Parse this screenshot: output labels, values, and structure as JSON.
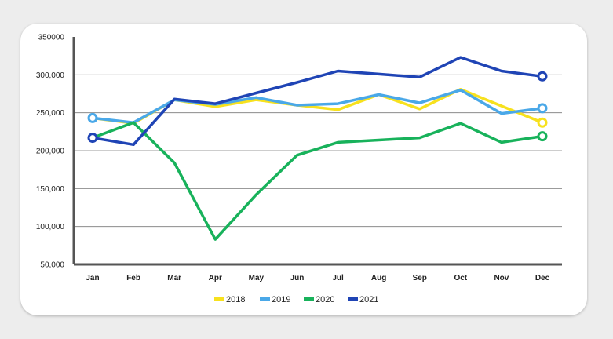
{
  "chart_data": {
    "type": "line",
    "title": "",
    "xlabel": "",
    "ylabel": "",
    "categories": [
      "Jan",
      "Feb",
      "Mar",
      "Apr",
      "May",
      "Jun",
      "Jul",
      "Aug",
      "Sep",
      "Oct",
      "Nov",
      "Dec"
    ],
    "y_ticks": [
      {
        "value": 50000,
        "label": "50,000"
      },
      {
        "value": 100000,
        "label": "100,000"
      },
      {
        "value": 150000,
        "label": "150,000"
      },
      {
        "value": 200000,
        "label": "200,000"
      },
      {
        "value": 250000,
        "label": "250,000"
      },
      {
        "value": 300000,
        "label": "300,000"
      },
      {
        "value": 350000,
        "label": "350000"
      }
    ],
    "ylim": [
      50000,
      350000
    ],
    "grid": true,
    "legend_position": "bottom",
    "series": [
      {
        "name": "2018",
        "color": "#f7e11e",
        "values": [
          243000,
          236000,
          267000,
          258000,
          267000,
          260000,
          254000,
          274000,
          255000,
          281000,
          259000,
          237000
        ]
      },
      {
        "name": "2019",
        "color": "#4aa8e8",
        "values": [
          243000,
          237000,
          267000,
          261000,
          270000,
          260000,
          262000,
          274000,
          263000,
          280000,
          249000,
          256000
        ]
      },
      {
        "name": "2020",
        "color": "#18b25b",
        "values": [
          217000,
          237000,
          184000,
          83000,
          142000,
          194000,
          211000,
          214000,
          217000,
          236000,
          211000,
          219000
        ]
      },
      {
        "name": "2021",
        "color": "#1f44b5",
        "values": [
          217000,
          208000,
          268000,
          262000,
          276000,
          290000,
          305000,
          301000,
          297000,
          323000,
          305000,
          298000
        ]
      }
    ]
  }
}
